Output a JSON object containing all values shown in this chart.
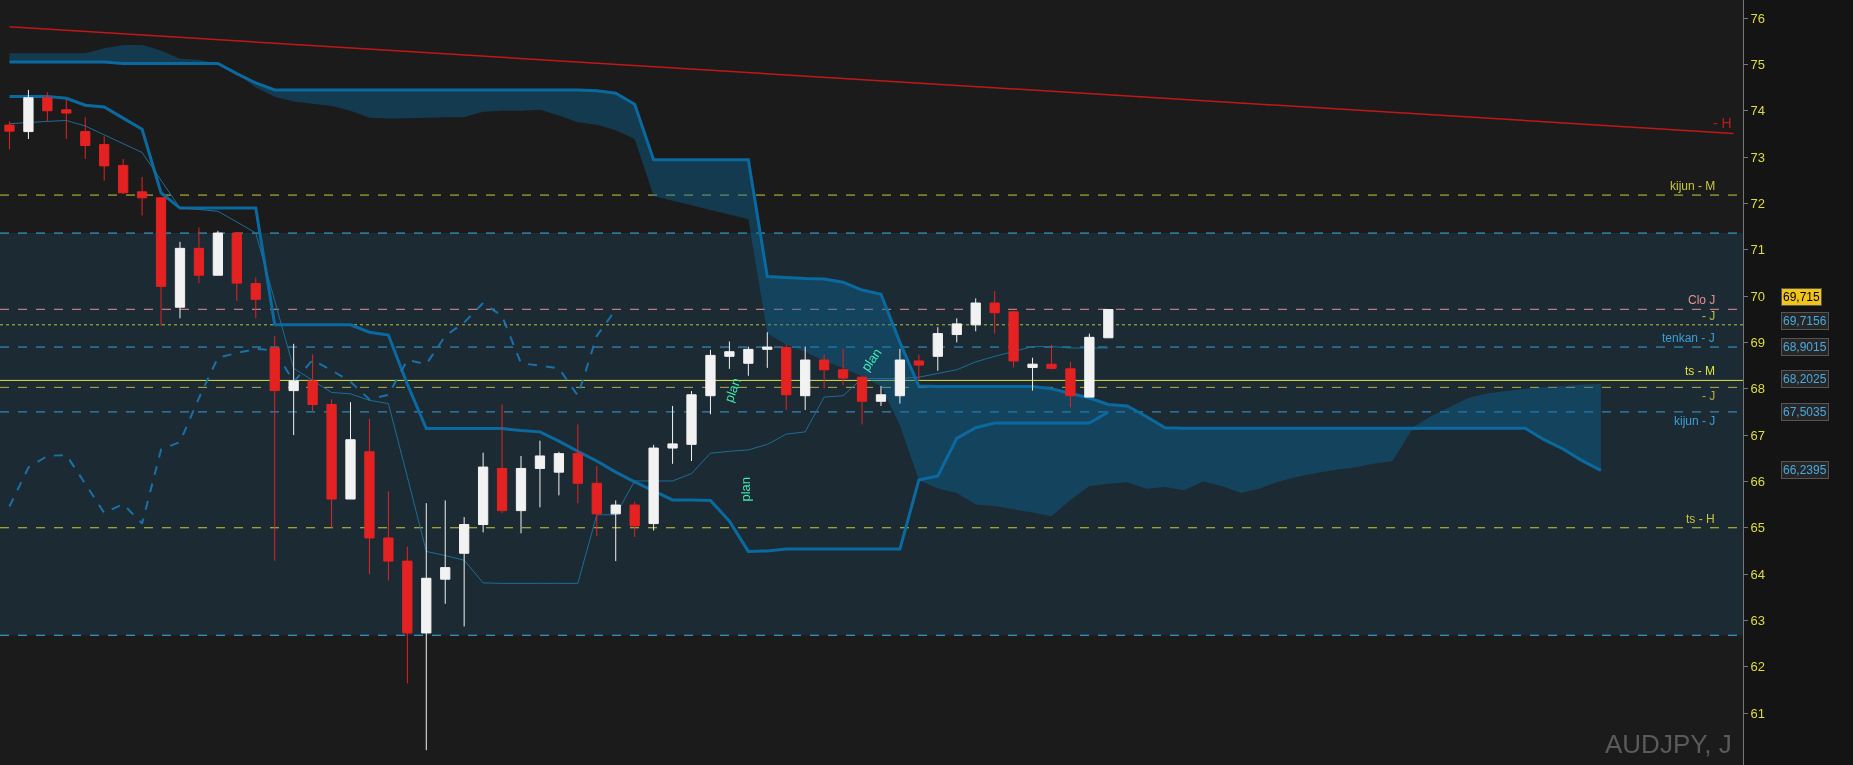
{
  "chart_data": {
    "type": "candlestick",
    "title": "AUDJPY, J",
    "categories": [
      null,
      null,
      null,
      null,
      null,
      null,
      null,
      null,
      null,
      null,
      null,
      null,
      null,
      null,
      null,
      null,
      null,
      null,
      null,
      null,
      null,
      null,
      null,
      null,
      null,
      null,
      null,
      null,
      null,
      null,
      null,
      null,
      null,
      null,
      null,
      null,
      null,
      null,
      null,
      null,
      null,
      null,
      null,
      null,
      null,
      null,
      null,
      null,
      null,
      null,
      null,
      null,
      null,
      null,
      null,
      null,
      null,
      null,
      null,
      null,
      null,
      null,
      null,
      null,
      null,
      null,
      null,
      null,
      null,
      null,
      null,
      null,
      null,
      null,
      null,
      null,
      null,
      null,
      null,
      null,
      null,
      null,
      null,
      null,
      null,
      null,
      null,
      null,
      null,
      null,
      null,
      null
    ],
    "colors": [
      "#e52222",
      "#f2f2f2",
      "#e52222",
      "#e52222",
      "#e52222",
      "#e52222",
      "#e52222",
      "#e52222",
      "#e52222",
      "#f2f2f2",
      "#e52222",
      "#f2f2f2",
      "#e52222",
      "#e52222",
      "#e52222",
      "#f2f2f2",
      "#e52222",
      "#e52222",
      "#f2f2f2",
      "#e52222",
      "#e52222",
      "#e52222",
      "#f2f2f2",
      "#f2f2f2",
      "#f2f2f2",
      "#f2f2f2",
      "#e52222",
      "#f2f2f2",
      "#f2f2f2",
      "#f2f2f2",
      "#e52222",
      "#e52222",
      "#f2f2f2",
      "#e52222",
      "#f2f2f2",
      "#f2f2f2",
      "#f2f2f2",
      "#f2f2f2",
      "#f2f2f2",
      "#f2f2f2",
      "#f2f2f2",
      "#e52222",
      "#f2f2f2",
      "#e52222",
      "#e52222",
      "#e52222",
      "#f2f2f2",
      "#f2f2f2",
      "#e52222",
      "#f2f2f2",
      "#f2f2f2",
      "#f2f2f2",
      "#e52222",
      "#e52222",
      "#f2f2f2",
      "#e52222",
      "#e52222",
      "#f2f2f2",
      "#f2f2f2",
      null,
      null,
      null,
      null,
      null,
      null,
      null,
      null,
      null,
      null,
      null,
      null,
      null,
      null,
      null,
      null,
      null,
      null,
      null,
      null,
      null,
      null,
      null,
      null,
      null,
      null,
      null,
      null,
      null,
      null,
      null,
      null,
      null
    ],
    "ohlc": [
      [
        73.69,
        73.77,
        73.17,
        73.56
      ],
      [
        73.55,
        74.45,
        73.39,
        74.28
      ],
      [
        74.28,
        74.4,
        73.77,
        74.0
      ],
      [
        74.02,
        74.24,
        73.39,
        73.95
      ],
      [
        73.55,
        73.86,
        72.96,
        73.25
      ],
      [
        73.27,
        73.45,
        72.49,
        72.81
      ],
      [
        72.82,
        72.96,
        72.2,
        72.23
      ],
      [
        72.25,
        72.57,
        71.74,
        72.12
      ],
      [
        72.12,
        72.12,
        69.36,
        70.21
      ],
      [
        69.76,
        71.17,
        69.52,
        71.03
      ],
      [
        71.03,
        71.48,
        70.28,
        70.45
      ],
      [
        70.45,
        71.41,
        70.45,
        71.36
      ],
      [
        71.36,
        71.38,
        69.9,
        70.28
      ],
      [
        70.27,
        70.4,
        69.52,
        69.93
      ],
      [
        68.88,
        69.14,
        64.29,
        67.96
      ],
      [
        67.96,
        68.97,
        67.0,
        68.17
      ],
      [
        68.17,
        68.74,
        67.52,
        67.66
      ],
      [
        67.66,
        67.77,
        65.0,
        65.62
      ],
      [
        65.62,
        67.71,
        65.62,
        66.9
      ],
      [
        66.64,
        67.35,
        64.0,
        64.78
      ],
      [
        64.78,
        65.79,
        63.86,
        64.28
      ],
      [
        64.28,
        64.59,
        61.64,
        62.73
      ],
      [
        62.73,
        65.53,
        60.2,
        63.91
      ],
      [
        63.89,
        65.59,
        63.36,
        64.14
      ],
      [
        64.45,
        65.23,
        62.87,
        65.07
      ],
      [
        65.07,
        66.62,
        64.9,
        66.31
      ],
      [
        66.28,
        67.66,
        65.32,
        65.37
      ],
      [
        65.37,
        66.55,
        64.88,
        66.28
      ],
      [
        66.28,
        66.88,
        65.44,
        66.55
      ],
      [
        66.2,
        66.64,
        65.7,
        66.6
      ],
      [
        66.6,
        67.23,
        65.53,
        65.96
      ],
      [
        65.96,
        66.33,
        64.82,
        65.3
      ],
      [
        65.3,
        65.59,
        64.28,
        65.49
      ],
      [
        65.49,
        65.56,
        64.8,
        65.04
      ],
      [
        65.09,
        66.79,
        64.94,
        66.72
      ],
      [
        66.72,
        67.63,
        66.38,
        66.81
      ],
      [
        66.8,
        67.95,
        66.44,
        67.87
      ],
      [
        67.85,
        68.84,
        67.45,
        68.72
      ],
      [
        68.7,
        69.02,
        68.43,
        68.8
      ],
      [
        68.55,
        68.91,
        68.28,
        68.85
      ],
      [
        68.85,
        69.22,
        68.45,
        68.9
      ],
      [
        68.89,
        68.95,
        67.54,
        67.87
      ],
      [
        67.85,
        68.91,
        67.54,
        68.62
      ],
      [
        68.62,
        68.74,
        68.01,
        68.41
      ],
      [
        68.41,
        68.86,
        68.08,
        68.23
      ],
      [
        68.25,
        68.27,
        67.23,
        67.73
      ],
      [
        67.73,
        68.06,
        67.63,
        67.87
      ],
      [
        67.85,
        68.86,
        67.68,
        68.62
      ],
      [
        68.6,
        68.74,
        68.17,
        68.51
      ],
      [
        68.7,
        69.33,
        68.39,
        69.19
      ],
      [
        69.17,
        69.52,
        69.0,
        69.4
      ],
      [
        69.38,
        69.95,
        69.24,
        69.85
      ],
      [
        69.85,
        70.11,
        69.19,
        69.64
      ],
      [
        69.66,
        69.68,
        68.46,
        68.6
      ],
      [
        68.46,
        68.67,
        67.96,
        68.53
      ],
      [
        68.53,
        68.95,
        68.42,
        68.44
      ],
      [
        68.43,
        68.58,
        67.6,
        67.85
      ],
      [
        67.82,
        69.19,
        67.82,
        69.11
      ],
      [
        69.1,
        69.71,
        69.1,
        69.71
      ],
      null,
      null,
      null,
      null,
      null,
      null,
      null,
      null,
      null,
      null,
      null,
      null,
      null,
      null,
      null,
      null,
      null,
      null,
      null,
      null,
      null,
      null,
      null,
      null,
      null,
      null,
      null,
      null,
      null,
      null,
      null,
      null,
      null
    ],
    "series": [
      {
        "type": "line",
        "color": "#0a6aa0",
        "line_style": "solid",
        "values": [
          74.31,
          74.31,
          74.31,
          74.27,
          74.12,
          74.08,
          73.84,
          73.6,
          72.23,
          71.9,
          71.9,
          71.9,
          71.9,
          71.9,
          69.38,
          69.38,
          69.38,
          69.38,
          69.38,
          69.22,
          69.16,
          68.1,
          67.14,
          67.14,
          67.14,
          67.14,
          67.14,
          67.1,
          67.07,
          66.87,
          66.65,
          66.44,
          66.2,
          65.99,
          null,
          65.6,
          65.6,
          65.59,
          65.14,
          64.49,
          64.5,
          64.54,
          64.54,
          64.54,
          64.54,
          64.54,
          64.54,
          64.54,
          66.03,
          66.12,
          66.93,
          67.16,
          67.26,
          67.26,
          67.26,
          67.26,
          67.26,
          67.26,
          67.5,
          null,
          null,
          null,
          null,
          null,
          null,
          null,
          null,
          null,
          null,
          null,
          null,
          null,
          null,
          null,
          null,
          null,
          null,
          null,
          null,
          null,
          null,
          null,
          null,
          null,
          null,
          null,
          null,
          null,
          null,
          null,
          null,
          null
        ]
      },
      {
        "type": "line",
        "color": "#0a6aa0",
        "line_style": "solid",
        "values": [
          75.05,
          75.05,
          75.05,
          75.05,
          75.05,
          75.05,
          75.02,
          75.02,
          75.02,
          75.02,
          75.02,
          75.02,
          74.8,
          74.6,
          74.45,
          74.45,
          74.45,
          74.45,
          74.45,
          74.45,
          74.45,
          74.45,
          74.45,
          74.45,
          74.45,
          74.45,
          74.45,
          74.45,
          74.45,
          74.45,
          74.45,
          74.43,
          74.38,
          74.14,
          72.94,
          72.94,
          72.94,
          72.94,
          72.94,
          72.94,
          70.42,
          70.4,
          70.38,
          70.37,
          70.3,
          70.13,
          70.04,
          69.0,
          68.06,
          68.05,
          68.05,
          68.05,
          68.05,
          68.05,
          68.05,
          68.0,
          null,
          67.8,
          67.66,
          67.63,
          67.4,
          67.16,
          67.15,
          67.15,
          67.15,
          67.15,
          67.15,
          67.15,
          67.15,
          67.15,
          67.15,
          67.15,
          67.15,
          67.15,
          67.15,
          67.15,
          67.15,
          67.15,
          67.15,
          67.15,
          67.15,
          66.9,
          66.7,
          66.45,
          66.24,
          null,
          null,
          null,
          null,
          null,
          null,
          null
        ],
        "lower": [
          75.05,
          75.05,
          75.05,
          75.05,
          75.05,
          75.05,
          75.02,
          75.02,
          75.02,
          75.02,
          75.02,
          75.0,
          74.8,
          74.5,
          74.3,
          74.2,
          74.15,
          74.1,
          74.0,
          73.85,
          73.83,
          73.84,
          73.85,
          73.86,
          73.86,
          73.98,
          74.0,
          74.0,
          74.02,
          73.9,
          73.75,
          73.7,
          73.58,
          73.39,
          72.16,
          72.06,
          71.96,
          71.86,
          71.76,
          71.66,
          69.2,
          68.95,
          68.8,
          68.6,
          68.45,
          68.27,
          68.06,
          67.21,
          66.03,
          65.85,
          65.75,
          65.5,
          65.47,
          65.4,
          65.33,
          65.25,
          65.6,
          65.9,
          65.95,
          65.98,
          65.84,
          65.88,
          65.81,
          66.0,
          65.9,
          65.75,
          65.85,
          66.0,
          66.1,
          66.18,
          66.25,
          66.3,
          66.38,
          66.44,
          67.1,
          67.15,
          67.15,
          67.15,
          67.15,
          67.15,
          67.15,
          66.9,
          66.7,
          66.45,
          66.24,
          null,
          null,
          null,
          null,
          null,
          null,
          null
        ],
        "upper": [
          75.24,
          75.24,
          75.24,
          75.24,
          75.24,
          75.35,
          75.42,
          75.42,
          75.3,
          75.12,
          75.1,
          75.02,
          74.8,
          74.6,
          74.45,
          74.45,
          74.45,
          74.45,
          74.45,
          74.45,
          74.45,
          74.45,
          74.45,
          74.45,
          74.45,
          74.45,
          74.45,
          74.45,
          74.45,
          74.45,
          74.45,
          74.43,
          74.38,
          74.14,
          72.94,
          72.94,
          72.94,
          72.94,
          72.94,
          72.94,
          70.42,
          70.4,
          70.38,
          70.37,
          70.3,
          70.13,
          70.04,
          69.0,
          68.06,
          68.05,
          68.05,
          68.05,
          68.05,
          68.05,
          68.05,
          68.0,
          67.9,
          67.8,
          67.66,
          67.63,
          67.4,
          67.16,
          67.15,
          67.15,
          67.15,
          67.15,
          67.15,
          67.15,
          67.15,
          67.15,
          67.15,
          67.15,
          67.15,
          67.15,
          67.15,
          67.4,
          67.6,
          67.8,
          67.9,
          67.95,
          68.0,
          68.03,
          68.06,
          68.09,
          68.1,
          null,
          null,
          null,
          null,
          null,
          null,
          null
        ]
      },
      {
        "type": "line",
        "color": "#1d6d98",
        "line_style": "solid",
        "values": [
          73.72,
          null,
          73.77,
          73.79,
          73.67,
          73.48,
          73.29,
          73.1,
          null,
          71.9,
          71.87,
          71.83,
          71.6,
          71.36,
          null,
          68.44,
          68.18,
          67.92,
          67.89,
          67.75,
          67.68,
          66.1,
          64.49,
          64.4,
          64.3,
          63.81,
          63.8,
          63.8,
          63.8,
          63.8,
          63.8,
          65.28,
          65.28,
          66.01,
          null,
          66.01,
          66.17,
          66.61,
          66.65,
          66.68,
          66.8,
          67.02,
          67.07,
          67.82,
          67.85,
          68.22,
          68.22,
          68.22,
          68.25,
          68.33,
          68.41,
          68.58,
          68.7,
          null,
          68.91,
          68.91,
          68.88,
          null,
          68.88,
          null,
          null,
          null,
          null,
          null,
          null,
          null,
          null,
          null,
          null,
          null,
          null,
          null,
          null,
          null,
          null,
          null,
          null,
          null,
          null,
          null,
          null,
          null,
          null,
          null,
          null,
          null,
          null,
          null,
          null,
          null,
          null,
          null
        ]
      },
      {
        "type": "line",
        "color": "#1a70a8",
        "line_style": "dashed",
        "values": [
          65.46,
          66.3,
          66.55,
          66.57,
          65.95,
          65.32,
          65.51,
          65.09,
          66.69,
          66.85,
          67.8,
          68.67,
          68.77,
          68.86,
          68.83,
          68.15,
          68.62,
          68.4,
          68.15,
          67.77,
          67.87,
          68.62,
          68.53,
          69.14,
          69.43,
          69.85,
          69.57,
          68.55,
          68.5,
          68.44,
          67.85,
          69.14,
          69.71,
          null,
          null,
          null,
          null,
          null,
          null,
          null,
          null,
          null,
          null,
          null,
          null,
          null,
          null,
          null,
          null,
          null,
          null,
          null,
          null,
          null,
          null,
          null,
          null,
          null,
          null,
          null,
          null,
          null,
          null,
          null,
          null,
          null,
          null,
          null,
          null,
          null,
          null,
          null,
          null,
          null,
          null,
          null,
          null,
          null,
          null,
          null,
          null,
          null,
          null,
          null,
          null,
          null,
          null,
          null,
          null,
          null,
          null,
          null
        ]
      },
      {
        "type": "line",
        "name": "- H",
        "color": "#c01818",
        "line_style": "solid",
        "values": [
          75.81,
          null,
          null,
          null,
          null,
          null,
          null,
          null,
          null,
          null,
          null,
          null,
          null,
          null,
          null,
          null,
          null,
          null,
          null,
          null,
          null,
          null,
          null,
          null,
          null,
          null,
          null,
          null,
          null,
          null,
          null,
          null,
          null,
          null,
          null,
          null,
          null,
          null,
          null,
          null,
          null,
          null,
          null,
          null,
          null,
          null,
          null,
          null,
          null,
          null,
          null,
          null,
          null,
          null,
          null,
          null,
          null,
          null,
          null,
          null,
          null,
          null,
          null,
          null,
          null,
          null,
          null,
          null,
          null,
          null,
          null,
          null,
          null,
          null,
          null,
          null,
          null,
          null,
          null,
          null,
          null,
          null,
          null,
          null,
          null,
          null,
          null,
          null,
          null,
          null,
          null,
          73.51
        ]
      }
    ],
    "bands": [
      {
        "axis": "y",
        "from": 62.68,
        "to": 71.36,
        "color": "#1c2a33"
      }
    ],
    "ref_lines": [
      {
        "axis": "y",
        "value": 72.18,
        "label": "kijun - M",
        "color": "#c8c83c",
        "line_style": "dashed"
      },
      {
        "axis": "y",
        "value": 71.36,
        "color": "#3ab4e8",
        "line_style": "dashed"
      },
      {
        "axis": "y",
        "value": 69.715,
        "label": "Clo J",
        "color": "#e89090",
        "line_style": "dashed"
      },
      {
        "axis": "y",
        "value": 69.38,
        "label": "- J",
        "color": "#b8c040",
        "line_style": "dotted"
      },
      {
        "axis": "y",
        "value": 68.9,
        "label": "tenkan - J",
        "color": "#3a9fd8",
        "line_style": "dashed"
      },
      {
        "axis": "y",
        "value": 68.18,
        "label": "ts - M",
        "color": "#e0e040",
        "line_style": "solid"
      },
      {
        "axis": "y",
        "value": 68.03,
        "label": "- J",
        "color": "#b8b040",
        "line_style": "dashed"
      },
      {
        "axis": "y",
        "value": 67.5,
        "label": "kijun - J",
        "color": "#3a9fd8",
        "line_style": "dashed"
      },
      {
        "axis": "y",
        "value": 65.0,
        "label": "ts - H",
        "color": "#c8c83c",
        "line_style": "dashed"
      },
      {
        "axis": "y",
        "value": 62.68,
        "color": "#3ab4e8",
        "line_style": "dashed"
      }
    ],
    "annotations": [
      "plan",
      "plan",
      "plan",
      "69,715",
      "69,7156",
      "68,9015",
      "68,2025",
      "67,5035",
      "66,2395"
    ],
    "ylim": [
      59.88,
      76.39
    ],
    "yticks": [
      61,
      62,
      63,
      64,
      65,
      66,
      67,
      68,
      69,
      70,
      71,
      72,
      73,
      74,
      75,
      76
    ],
    "tick_labels": "y",
    "grid": false,
    "legend": false,
    "marker": "none"
  }
}
